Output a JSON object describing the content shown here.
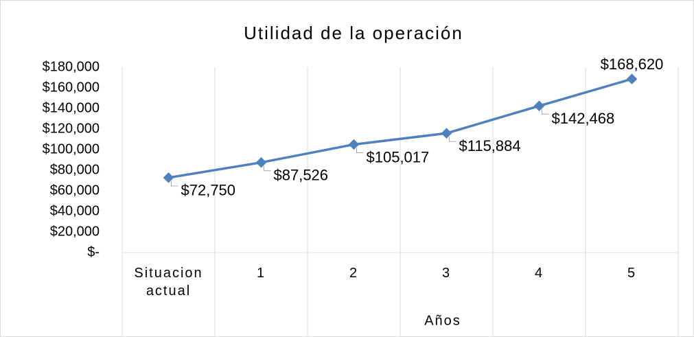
{
  "chart_data": {
    "type": "line",
    "title": "Utilidad de la operación",
    "x_label": "Años",
    "categories": [
      "Situacion actual",
      "1",
      "2",
      "3",
      "4",
      "5"
    ],
    "series": [
      {
        "name": "Utilidad de la operación",
        "color": "#4f81bd",
        "values": [
          72750,
          87526,
          105017,
          115884,
          142468,
          168620
        ],
        "value_labels": [
          "$72,750",
          "$87,526",
          "$105,017",
          "$115,884",
          "$142,468",
          "$168,620"
        ]
      }
    ],
    "ylim": [
      0,
      180000
    ],
    "yticks": [
      {
        "value": 0,
        "label": "$-"
      },
      {
        "value": 20000,
        "label": "$20,000"
      },
      {
        "value": 40000,
        "label": "$40,000"
      },
      {
        "value": 60000,
        "label": "$60,000"
      },
      {
        "value": 80000,
        "label": "$80,000"
      },
      {
        "value": 100000,
        "label": "$100,000"
      },
      {
        "value": 120000,
        "label": "$120,000"
      },
      {
        "value": 140000,
        "label": "$140,000"
      },
      {
        "value": 160000,
        "label": "$160,000"
      },
      {
        "value": 180000,
        "label": "$180,000"
      }
    ],
    "grid": true
  }
}
